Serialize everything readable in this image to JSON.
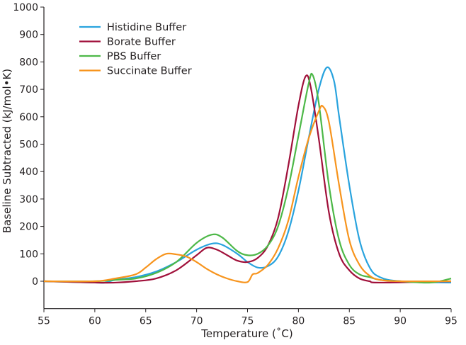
{
  "chart_data": {
    "type": "line",
    "title": "",
    "xlabel": "Temperature (˚C)",
    "ylabel": "Baseline Subtracted (kJ/mol•K)",
    "xlim": [
      55,
      95
    ],
    "ylim": [
      -100,
      1000
    ],
    "xticks": [
      55,
      60,
      65,
      70,
      75,
      80,
      85,
      90,
      95
    ],
    "yticks": [
      0,
      100,
      200,
      300,
      400,
      500,
      600,
      700,
      800,
      900,
      1000
    ],
    "grid": false,
    "legend": "top-left",
    "series": [
      {
        "name": "Histidine Buffer",
        "color": "#29a3de",
        "x": [
          55,
          60,
          61,
          62,
          64,
          66,
          68,
          70,
          71.5,
          72.5,
          74,
          75,
          76,
          77,
          78,
          79,
          80,
          81,
          82,
          82.8,
          83.5,
          84,
          85,
          86,
          87,
          88,
          90,
          95
        ],
        "y": [
          0,
          -5,
          -5,
          5,
          15,
          35,
          70,
          115,
          137,
          133,
          100,
          70,
          50,
          55,
          90,
          180,
          330,
          520,
          700,
          780,
          730,
          600,
          350,
          150,
          50,
          15,
          0,
          -5
        ]
      },
      {
        "name": "Borate Buffer",
        "color": "#a0103a",
        "x": [
          55,
          60,
          62,
          64,
          66,
          68,
          70,
          71,
          72,
          73,
          74,
          75,
          76,
          77,
          78,
          79,
          80,
          80.7,
          81.2,
          82,
          83,
          84,
          85,
          86,
          87,
          88,
          95
        ],
        "y": [
          0,
          -5,
          -5,
          0,
          10,
          40,
          95,
          122,
          115,
          95,
          75,
          70,
          85,
          130,
          230,
          420,
          640,
          747,
          710,
          520,
          250,
          100,
          40,
          10,
          0,
          -5,
          0
        ]
      },
      {
        "name": "PBS Buffer",
        "color": "#4db848",
        "x": [
          55,
          60,
          62,
          64,
          66,
          68,
          70,
          71.5,
          72.5,
          74,
          75,
          76,
          77,
          78,
          79,
          80,
          81,
          81.4,
          82,
          83,
          84,
          85,
          86,
          87,
          88,
          90,
          93,
          95
        ],
        "y": [
          0,
          0,
          5,
          10,
          30,
          70,
          140,
          170,
          160,
          110,
          95,
          100,
          130,
          200,
          340,
          530,
          720,
          752,
          650,
          350,
          150,
          60,
          25,
          15,
          5,
          0,
          -5,
          10
        ]
      },
      {
        "name": "Succinate Buffer",
        "color": "#f7941d",
        "x": [
          55,
          60,
          62,
          64,
          65,
          66,
          67,
          68,
          69,
          70,
          71,
          72,
          73,
          74,
          75,
          75.5,
          76,
          77,
          78,
          79,
          80,
          81,
          82,
          82.4,
          83,
          84,
          85,
          86,
          87,
          88,
          90,
          95
        ],
        "y": [
          0,
          0,
          10,
          25,
          50,
          80,
          100,
          98,
          90,
          70,
          45,
          25,
          10,
          0,
          -3,
          25,
          30,
          60,
          120,
          220,
          380,
          520,
          620,
          638,
          580,
          350,
          150,
          60,
          20,
          5,
          0,
          0
        ]
      }
    ]
  }
}
